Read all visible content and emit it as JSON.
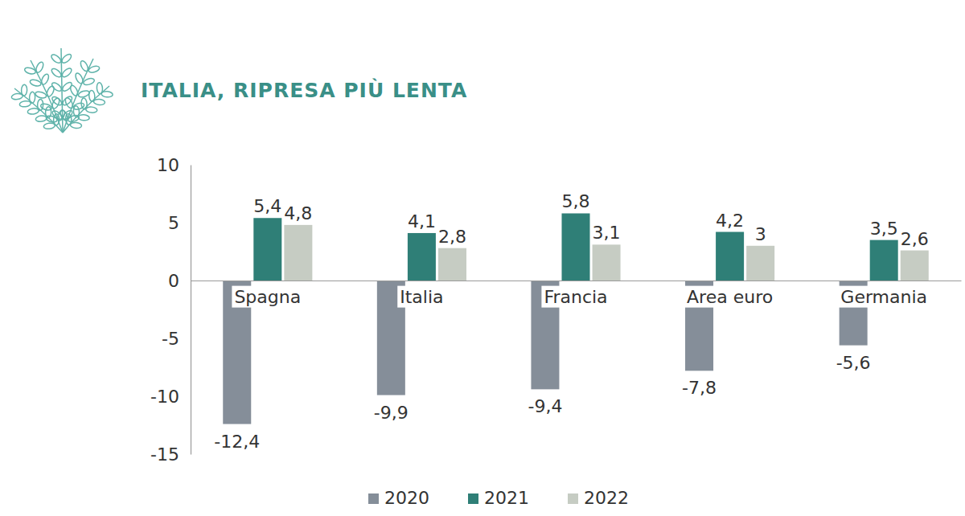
{
  "chart_data": {
    "type": "bar",
    "title": "ITALIA, RIPRESA PIÙ LENTA",
    "categories": [
      "Spagna",
      "Italia",
      "Francia",
      "Area euro",
      "Germania"
    ],
    "series": [
      {
        "name": "2020",
        "color": "#858e99",
        "values": [
          -12.4,
          -9.9,
          -9.4,
          -7.8,
          -5.6
        ],
        "value_labels": [
          "-12,4",
          "-9,9",
          "-9,4",
          "-7,8",
          "-5,6"
        ]
      },
      {
        "name": "2021",
        "color": "#2f7f77",
        "values": [
          5.4,
          4.1,
          5.8,
          4.2,
          3.5
        ],
        "value_labels": [
          "5,4",
          "4,1",
          "5,8",
          "4,2",
          "3,5"
        ]
      },
      {
        "name": "2022",
        "color": "#c6ccc3",
        "values": [
          4.8,
          2.8,
          3.1,
          3,
          2.6
        ],
        "value_labels": [
          "4,8",
          "2,8",
          "3,1",
          "3",
          "2,6"
        ]
      }
    ],
    "ylim": [
      -15,
      10
    ],
    "yticks": [
      -15,
      -10,
      -5,
      0,
      5,
      10
    ],
    "grid": false,
    "legend": "bottom",
    "data_labels": true
  }
}
